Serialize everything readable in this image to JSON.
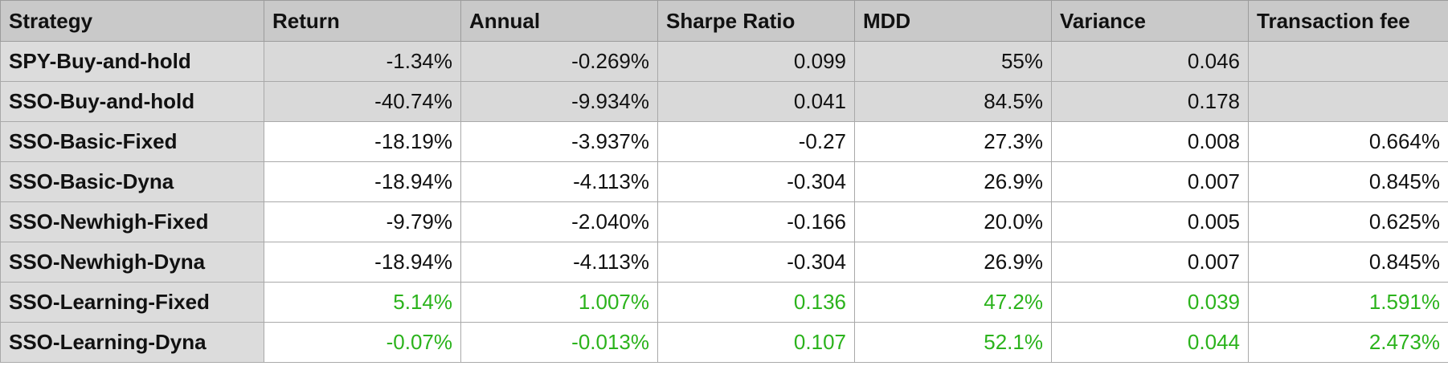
{
  "headers": [
    "Strategy",
    "Return",
    "Annual",
    "Sharpe Ratio",
    "MDD",
    "Variance",
    "Transaction fee"
  ],
  "rows": [
    {
      "strategy": "SPY-Buy-and-hold",
      "return": "-1.34%",
      "annual": "-0.269%",
      "sharpe": "0.099",
      "mdd": "55%",
      "variance": "0.046",
      "fee": ""
    },
    {
      "strategy": "SSO-Buy-and-hold",
      "return": "-40.74%",
      "annual": "-9.934%",
      "sharpe": "0.041",
      "mdd": "84.5%",
      "variance": "0.178",
      "fee": ""
    },
    {
      "strategy": "SSO-Basic-Fixed",
      "return": "-18.19%",
      "annual": "-3.937%",
      "sharpe": "-0.27",
      "mdd": "27.3%",
      "variance": "0.008",
      "fee": "0.664%"
    },
    {
      "strategy": "SSO-Basic-Dyna",
      "return": "-18.94%",
      "annual": "-4.113%",
      "sharpe": "-0.304",
      "mdd": "26.9%",
      "variance": "0.007",
      "fee": "0.845%"
    },
    {
      "strategy": "SSO-Newhigh-Fixed",
      "return": "-9.79%",
      "annual": "-2.040%",
      "sharpe": "-0.166",
      "mdd": "20.0%",
      "variance": "0.005",
      "fee": "0.625%"
    },
    {
      "strategy": "SSO-Newhigh-Dyna",
      "return": "-18.94%",
      "annual": "-4.113%",
      "sharpe": "-0.304",
      "mdd": "26.9%",
      "variance": "0.007",
      "fee": "0.845%"
    },
    {
      "strategy": "SSO-Learning-Fixed",
      "return": "5.14%",
      "annual": "1.007%",
      "sharpe": "0.136",
      "mdd": "47.2%",
      "variance": "0.039",
      "fee": "1.591%"
    },
    {
      "strategy": "SSO-Learning-Dyna",
      "return": "-0.07%",
      "annual": "-0.013%",
      "sharpe": "0.107",
      "mdd": "52.1%",
      "variance": "0.044",
      "fee": "2.473%"
    }
  ],
  "colors": {
    "header_bg": "#c9c9c9",
    "row_header_bg": "#dcdcdc",
    "baseline_row_bg": "#d9d9d9",
    "highlight_text": "#2bb31c",
    "grid_line": "#a9a9a9"
  }
}
